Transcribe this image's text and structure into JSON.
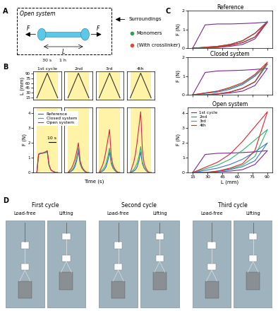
{
  "panel_labels": [
    "A",
    "B",
    "C",
    "D"
  ],
  "schematic": {
    "title": "Open system",
    "force": "F",
    "length": "L",
    "surroundings": "Surroundings",
    "items": [
      {
        "label": "Monomers",
        "color": "#2e9e4f"
      },
      {
        "label": "(With crosslinker)",
        "color": "#e04a2a"
      }
    ]
  },
  "time_axis_label": "Time (s)",
  "chart_data": [
    {
      "panel": "B",
      "type": "line",
      "title": "1st cycle",
      "ylabel": "L (mm)",
      "annotations": [
        "30 s",
        "1 h"
      ],
      "x": [
        0,
        5,
        10,
        15,
        20,
        25,
        30,
        35,
        40,
        45,
        50,
        55,
        60
      ],
      "values": [
        15,
        27.5,
        40,
        52.5,
        65,
        77.5,
        90,
        77.5,
        65,
        52.5,
        40,
        27.5,
        15
      ],
      "color": "#333333",
      "xlim": [
        -10,
        70
      ],
      "ylim": [
        10,
        95
      ],
      "yticks": [
        15,
        30,
        45,
        60,
        75,
        90
      ],
      "tick_labels": "y"
    },
    {
      "panel": "B",
      "type": "line",
      "title": "2nd",
      "x": [
        0,
        5,
        10,
        15,
        20,
        25,
        30,
        35,
        40,
        45,
        50,
        55,
        60
      ],
      "values": [
        15,
        27.5,
        40,
        52.5,
        65,
        77.5,
        90,
        77.5,
        65,
        52.5,
        40,
        27.5,
        15
      ],
      "color": "#333333",
      "xlim": [
        -10,
        70
      ],
      "ylim": [
        10,
        95
      ],
      "yticks": [
        15,
        30,
        45,
        60,
        75,
        90
      ],
      "tick_labels": false
    },
    {
      "panel": "B",
      "type": "line",
      "title": "3rd",
      "x": [
        0,
        5,
        10,
        15,
        20,
        25,
        30,
        35,
        40,
        45,
        50,
        55,
        60
      ],
      "values": [
        15,
        27.5,
        40,
        52.5,
        65,
        77.5,
        90,
        77.5,
        65,
        52.5,
        40,
        27.5,
        15
      ],
      "color": "#333333",
      "xlim": [
        -10,
        70
      ],
      "ylim": [
        10,
        95
      ],
      "yticks": [
        15,
        30,
        45,
        60,
        75,
        90
      ],
      "tick_labels": false
    },
    {
      "panel": "B",
      "type": "line",
      "title": "4th",
      "x": [
        0,
        5,
        10,
        15,
        20,
        25,
        30,
        35,
        40,
        45,
        50,
        55,
        60
      ],
      "values": [
        15,
        27.5,
        40,
        52.5,
        65,
        77.5,
        90,
        77.5,
        65,
        52.5,
        40,
        27.5,
        15
      ],
      "color": "#333333",
      "xlim": [
        -10,
        70
      ],
      "ylim": [
        10,
        95
      ],
      "yticks": [
        15,
        30,
        45,
        60,
        75,
        90
      ],
      "tick_labels": false
    },
    {
      "panel": "B",
      "type": "line",
      "ylabel": "F (N)",
      "legend": "upper left",
      "annotations": [
        "10 s"
      ],
      "x": [
        0,
        5,
        10,
        15,
        20,
        25,
        30,
        35,
        40,
        45,
        50,
        55,
        60
      ],
      "series": [
        {
          "name": "Reference",
          "color": "#3b5bdb",
          "values": [
            0,
            1.25,
            1.3,
            1.3,
            1.32,
            1.35,
            1.4,
            0.5,
            0.2,
            0.1,
            0.05,
            0,
            0
          ]
        },
        {
          "name": "Closed system",
          "color": "#2bb673",
          "values": [
            0,
            1.2,
            1.28,
            1.3,
            1.32,
            1.36,
            1.42,
            0.5,
            0.2,
            0.1,
            0.05,
            0,
            0
          ]
        },
        {
          "name": "Open system",
          "color": "#d6244f",
          "values": [
            0,
            1.22,
            1.3,
            1.32,
            1.35,
            1.4,
            1.48,
            0.55,
            0.2,
            0.1,
            0.05,
            0,
            0
          ]
        }
      ],
      "xlim": [
        -10,
        70
      ],
      "ylim": [
        0,
        4.4
      ],
      "yticks": [
        0,
        1,
        2,
        3,
        4
      ],
      "tick_labels": "y"
    },
    {
      "panel": "B",
      "type": "line",
      "x": [
        0,
        5,
        10,
        15,
        20,
        25,
        30,
        35,
        40,
        45,
        50,
        55,
        60
      ],
      "series": [
        {
          "name": "Reference",
          "color": "#3b5bdb",
          "values": [
            0,
            0.05,
            0.1,
            0.2,
            0.4,
            0.8,
            1.45,
            0.6,
            0.3,
            0.15,
            0.05,
            0,
            0
          ]
        },
        {
          "name": "Closed system",
          "color": "#2bb673",
          "values": [
            0,
            0.08,
            0.15,
            0.3,
            0.55,
            1.0,
            1.65,
            0.7,
            0.35,
            0.15,
            0.05,
            0,
            0
          ]
        },
        {
          "name": "Open system",
          "color": "#d6244f",
          "values": [
            0,
            0.15,
            0.3,
            0.55,
            0.9,
            1.4,
            2.0,
            0.8,
            0.4,
            0.2,
            0.08,
            0,
            0
          ]
        }
      ],
      "xlim": [
        -10,
        70
      ],
      "ylim": [
        0,
        4.4
      ],
      "yticks": [
        0,
        1,
        2,
        3,
        4
      ],
      "tick_labels": false
    },
    {
      "panel": "B",
      "type": "line",
      "x": [
        0,
        5,
        10,
        15,
        20,
        25,
        30,
        35,
        40,
        45,
        50,
        55,
        60
      ],
      "series": [
        {
          "name": "Reference",
          "color": "#3b5bdb",
          "values": [
            0,
            0.05,
            0.1,
            0.2,
            0.4,
            0.8,
            1.4,
            0.6,
            0.3,
            0.15,
            0.05,
            0,
            0
          ]
        },
        {
          "name": "Closed system",
          "color": "#2bb673",
          "values": [
            0,
            0.1,
            0.2,
            0.35,
            0.6,
            1.05,
            1.65,
            0.7,
            0.35,
            0.15,
            0.05,
            0,
            0
          ]
        },
        {
          "name": "Open system",
          "color": "#d6244f",
          "values": [
            0,
            0.25,
            0.5,
            0.9,
            1.5,
            2.2,
            2.9,
            1.1,
            0.5,
            0.25,
            0.1,
            0,
            0
          ]
        }
      ],
      "xlim": [
        -10,
        70
      ],
      "ylim": [
        0,
        4.4
      ],
      "yticks": [
        0,
        1,
        2,
        3,
        4
      ],
      "tick_labels": false
    },
    {
      "panel": "B",
      "type": "line",
      "x": [
        0,
        5,
        10,
        15,
        20,
        25,
        30,
        35,
        40,
        45,
        50,
        55,
        60
      ],
      "series": [
        {
          "name": "Reference",
          "color": "#3b5bdb",
          "values": [
            0,
            0.05,
            0.1,
            0.2,
            0.4,
            0.8,
            1.4,
            0.6,
            0.3,
            0.15,
            0.05,
            0,
            0
          ]
        },
        {
          "name": "Closed system",
          "color": "#2bb673",
          "values": [
            0,
            0.1,
            0.2,
            0.4,
            0.65,
            1.1,
            1.75,
            0.7,
            0.35,
            0.15,
            0.05,
            0,
            0
          ]
        },
        {
          "name": "Open system",
          "color": "#d6244f",
          "values": [
            0,
            0.35,
            0.7,
            1.25,
            2.1,
            3.1,
            4.1,
            1.5,
            0.6,
            0.3,
            0.1,
            0,
            0
          ]
        }
      ],
      "xlim": [
        -10,
        70
      ],
      "ylim": [
        0,
        4.4
      ],
      "yticks": [
        0,
        1,
        2,
        3,
        4
      ],
      "tick_labels": false
    },
    {
      "panel": "C",
      "type": "line",
      "title": "Reference",
      "ylabel": "F (N)",
      "x": [
        15,
        27.5,
        40,
        52.5,
        65,
        77.5,
        90,
        77.5,
        65,
        52.5,
        40,
        27.5,
        15
      ],
      "series": [
        {
          "name": "1st cycle",
          "color": "#7a2a8c",
          "values": [
            0,
            1.25,
            1.3,
            1.3,
            1.32,
            1.35,
            1.4,
            0.5,
            0.2,
            0.1,
            0.05,
            0,
            0
          ]
        },
        {
          "name": "2nd",
          "color": "#3f6fd8",
          "values": [
            0,
            0.05,
            0.1,
            0.2,
            0.4,
            0.8,
            1.45,
            0.6,
            0.3,
            0.15,
            0.05,
            0,
            0
          ]
        },
        {
          "name": "3rd",
          "color": "#2fb36d",
          "values": [
            0,
            0.05,
            0.1,
            0.2,
            0.4,
            0.8,
            1.4,
            0.6,
            0.3,
            0.15,
            0.05,
            0,
            0
          ]
        },
        {
          "name": "4th",
          "color": "#e0262b",
          "values": [
            0,
            0.05,
            0.1,
            0.2,
            0.4,
            0.8,
            1.4,
            0.6,
            0.3,
            0.15,
            0.05,
            0,
            0
          ]
        }
      ],
      "xlim": [
        10,
        95
      ],
      "xticks": [
        15,
        30,
        45,
        60,
        75,
        90
      ],
      "ylim": [
        0,
        2
      ],
      "yticks": [
        0,
        1,
        2
      ],
      "tick_labels": "y"
    },
    {
      "panel": "C",
      "type": "line",
      "title": "Closed system",
      "ylabel": "F (N)",
      "x": [
        15,
        27.5,
        40,
        52.5,
        65,
        77.5,
        90,
        77.5,
        65,
        52.5,
        40,
        27.5,
        15
      ],
      "series": [
        {
          "name": "1st cycle",
          "color": "#7a2a8c",
          "values": [
            0,
            1.2,
            1.28,
            1.3,
            1.32,
            1.36,
            1.42,
            0.5,
            0.2,
            0.1,
            0.05,
            0,
            0
          ]
        },
        {
          "name": "2nd",
          "color": "#3f6fd8",
          "values": [
            0,
            0.08,
            0.15,
            0.3,
            0.55,
            1.0,
            1.65,
            0.7,
            0.35,
            0.15,
            0.05,
            0,
            0
          ]
        },
        {
          "name": "3rd",
          "color": "#2fb36d",
          "values": [
            0,
            0.1,
            0.2,
            0.35,
            0.6,
            1.05,
            1.65,
            0.7,
            0.35,
            0.15,
            0.05,
            0,
            0
          ]
        },
        {
          "name": "4th",
          "color": "#e0262b",
          "values": [
            0,
            0.1,
            0.2,
            0.4,
            0.65,
            1.1,
            1.75,
            0.7,
            0.35,
            0.15,
            0.05,
            0,
            0
          ]
        }
      ],
      "xlim": [
        10,
        95
      ],
      "xticks": [
        15,
        30,
        45,
        60,
        75,
        90
      ],
      "ylim": [
        0,
        2
      ],
      "yticks": [
        0,
        1,
        2
      ],
      "tick_labels": "y"
    },
    {
      "panel": "C",
      "type": "line",
      "title": "Open system",
      "ylabel": "F (N)",
      "xlabel": "L (mm)",
      "legend": "upper left",
      "x": [
        15,
        27.5,
        40,
        52.5,
        65,
        77.5,
        90,
        77.5,
        65,
        52.5,
        40,
        27.5,
        15
      ],
      "series": [
        {
          "name": "1st cycle",
          "color": "#7a2a8c",
          "values": [
            0,
            1.22,
            1.3,
            1.32,
            1.35,
            1.4,
            1.48,
            0.55,
            0.2,
            0.1,
            0.05,
            0,
            0
          ]
        },
        {
          "name": "2nd",
          "color": "#3f6fd8",
          "values": [
            0,
            0.15,
            0.3,
            0.55,
            0.9,
            1.4,
            2.0,
            0.8,
            0.4,
            0.2,
            0.08,
            0,
            0
          ]
        },
        {
          "name": "3rd",
          "color": "#2fb36d",
          "values": [
            0,
            0.25,
            0.5,
            0.9,
            1.5,
            2.2,
            2.9,
            1.1,
            0.5,
            0.25,
            0.1,
            0,
            0
          ]
        },
        {
          "name": "4th",
          "color": "#e0262b",
          "values": [
            0,
            0.35,
            0.7,
            1.25,
            2.1,
            3.1,
            4.1,
            1.5,
            0.6,
            0.3,
            0.1,
            0,
            0
          ]
        }
      ],
      "xlim": [
        10,
        95
      ],
      "xticks": [
        15,
        30,
        45,
        60,
        75,
        90
      ],
      "ylim": [
        0,
        4.4
      ],
      "yticks": [
        0,
        1,
        2,
        3,
        4
      ]
    }
  ],
  "photos": {
    "groups": [
      {
        "title": "First cycle",
        "frames": [
          "Load-free",
          "Lifting"
        ]
      },
      {
        "title": "Second cycle",
        "frames": [
          "Load-free",
          "Lifting"
        ]
      },
      {
        "title": "Third cycle",
        "frames": [
          "Load-free",
          "Lifting"
        ]
      }
    ]
  }
}
